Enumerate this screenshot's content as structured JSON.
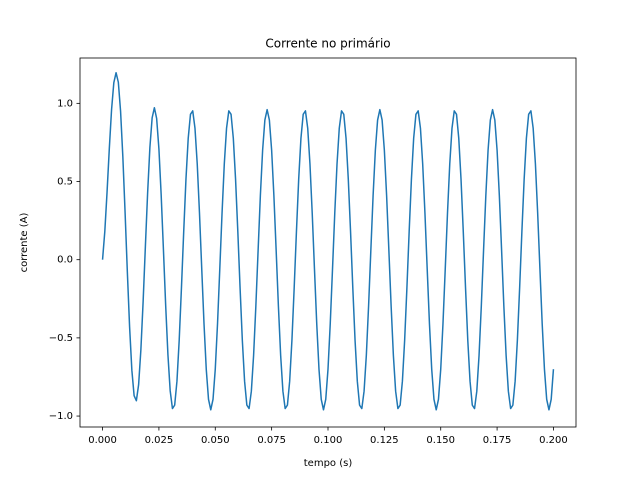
{
  "chart_data": {
    "type": "line",
    "title": "Corrente no primário",
    "xlabel": "tempo (s)",
    "ylabel": "corrente (A)",
    "color": "#1f77b4",
    "xlim": [
      -0.01,
      0.21
    ],
    "ylim": [
      -1.07,
      1.29
    ],
    "xticks": [
      {
        "value": 0,
        "label": "0.000"
      },
      {
        "value": 0.025,
        "label": "0.025"
      },
      {
        "value": 0.05,
        "label": "0.050"
      },
      {
        "value": 0.075,
        "label": "0.075"
      },
      {
        "value": 0.1,
        "label": "0.100"
      },
      {
        "value": 0.125,
        "label": "0.125"
      },
      {
        "value": 0.15,
        "label": "0.150"
      },
      {
        "value": 0.175,
        "label": "0.175"
      },
      {
        "value": 0.2,
        "label": "0.200"
      }
    ],
    "yticks": [
      {
        "value": -1,
        "label": "−1.0"
      },
      {
        "value": -0.5,
        "label": "−0.5"
      },
      {
        "value": 0,
        "label": "0.0"
      },
      {
        "value": 0.5,
        "label": "0.5"
      },
      {
        "value": 1,
        "label": "1.0"
      }
    ],
    "x": [
      0,
      0.001,
      0.002,
      0.003,
      0.004,
      0.005,
      0.006,
      0.007,
      0.008,
      0.009,
      0.01,
      0.011,
      0.012,
      0.013,
      0.014,
      0.015,
      0.016,
      0.017,
      0.018,
      0.019,
      0.02,
      0.021,
      0.022,
      0.023,
      0.024,
      0.025,
      0.026,
      0.027,
      0.028,
      0.029,
      0.03,
      0.031,
      0.032,
      0.033,
      0.034,
      0.035,
      0.036,
      0.037,
      0.038,
      0.039,
      0.04,
      0.041,
      0.042,
      0.043,
      0.044,
      0.045,
      0.046,
      0.047,
      0.048,
      0.049,
      0.05,
      0.051,
      0.052,
      0.053,
      0.054,
      0.055,
      0.056,
      0.057,
      0.058,
      0.059,
      0.06,
      0.061,
      0.062,
      0.063,
      0.064,
      0.065,
      0.066,
      0.067,
      0.068,
      0.069,
      0.07,
      0.071,
      0.072,
      0.073,
      0.074,
      0.075,
      0.076,
      0.077,
      0.078,
      0.079,
      0.08,
      0.081,
      0.082,
      0.083,
      0.084,
      0.085,
      0.086,
      0.087,
      0.088,
      0.089,
      0.09,
      0.091,
      0.092,
      0.093,
      0.094,
      0.095,
      0.096,
      0.097,
      0.098,
      0.099,
      0.1,
      0.101,
      0.102,
      0.103,
      0.104,
      0.105,
      0.106,
      0.107,
      0.108,
      0.109,
      0.11,
      0.111,
      0.112,
      0.113,
      0.114,
      0.115,
      0.116,
      0.117,
      0.118,
      0.119,
      0.12,
      0.121,
      0.122,
      0.123,
      0.124,
      0.125,
      0.126,
      0.127,
      0.128,
      0.129,
      0.13,
      0.131,
      0.132,
      0.133,
      0.134,
      0.135,
      0.136,
      0.137,
      0.138,
      0.139,
      0.14,
      0.141,
      0.142,
      0.143,
      0.144,
      0.145,
      0.146,
      0.147,
      0.148,
      0.149,
      0.15,
      0.151,
      0.152,
      0.153,
      0.154,
      0.155,
      0.156,
      0.157,
      0.158,
      0.159,
      0.16,
      0.161,
      0.162,
      0.163,
      0.164,
      0.165,
      0.166,
      0.167,
      0.168,
      0.169,
      0.17,
      0.171,
      0.172,
      0.173,
      0.174,
      0.175,
      0.176,
      0.177,
      0.178,
      0.179,
      0.18,
      0.181,
      0.182,
      0.183,
      0.184,
      0.185,
      0.186,
      0.187,
      0.188,
      0.189,
      0.19,
      0.191,
      0.192,
      0.193,
      0.194,
      0.195,
      0.196,
      0.197,
      0.198,
      0.199,
      0.2
    ],
    "values": [
      0,
      0.18,
      0.432,
      0.711,
      0.959,
      1.132,
      1.196,
      1.135,
      0.949,
      0.659,
      0.301,
      -0.079,
      -0.43,
      -0.706,
      -0.87,
      -0.902,
      -0.799,
      -0.577,
      -0.267,
      0.085,
      0.43,
      0.718,
      0.908,
      0.972,
      0.903,
      0.709,
      0.416,
      0.066,
      -0.292,
      -0.608,
      -0.838,
      -0.952,
      -0.93,
      -0.777,
      -0.515,
      -0.18,
      0.18,
      0.515,
      0.777,
      0.93,
      0.952,
      0.841,
      0.612,
      0.297,
      -0.06,
      -0.409,
      -0.7,
      -0.893,
      -0.96,
      -0.893,
      -0.7,
      -0.409,
      -0.06,
      0.297,
      0.612,
      0.841,
      0.952,
      0.93,
      0.777,
      0.515,
      0.18,
      -0.18,
      -0.515,
      -0.777,
      -0.93,
      -0.952,
      -0.841,
      -0.612,
      -0.297,
      0.06,
      0.409,
      0.7,
      0.893,
      0.96,
      0.893,
      0.7,
      0.409,
      0.06,
      -0.297,
      -0.612,
      -0.841,
      -0.952,
      -0.93,
      -0.777,
      -0.515,
      -0.18,
      0.18,
      0.515,
      0.777,
      0.93,
      0.952,
      0.841,
      0.612,
      0.297,
      -0.06,
      -0.409,
      -0.7,
      -0.893,
      -0.96,
      -0.893,
      -0.7,
      -0.409,
      -0.06,
      0.297,
      0.612,
      0.841,
      0.952,
      0.93,
      0.777,
      0.515,
      0.18,
      -0.18,
      -0.515,
      -0.777,
      -0.93,
      -0.952,
      -0.841,
      -0.612,
      -0.297,
      0.06,
      0.409,
      0.7,
      0.893,
      0.96,
      0.893,
      0.7,
      0.409,
      0.06,
      -0.297,
      -0.612,
      -0.841,
      -0.952,
      -0.93,
      -0.777,
      -0.515,
      -0.18,
      0.18,
      0.515,
      0.777,
      0.93,
      0.952,
      0.841,
      0.612,
      0.297,
      -0.06,
      -0.409,
      -0.7,
      -0.893,
      -0.96,
      -0.893,
      -0.7,
      -0.409,
      -0.06,
      0.297,
      0.612,
      0.841,
      0.952,
      0.93,
      0.777,
      0.515,
      0.18,
      -0.18,
      -0.515,
      -0.777,
      -0.93,
      -0.952,
      -0.841,
      -0.612,
      -0.297,
      0.06,
      0.409,
      0.7,
      0.893,
      0.96,
      0.893,
      0.7,
      0.409,
      0.06,
      -0.297,
      -0.612,
      -0.841,
      -0.952,
      -0.93,
      -0.777,
      -0.515,
      -0.18,
      0.18,
      0.515,
      0.777,
      0.93,
      0.952,
      0.841,
      0.612,
      0.297,
      -0.06,
      -0.409,
      -0.7,
      -0.893,
      -0.96,
      -0.893,
      -0.7
    ]
  }
}
